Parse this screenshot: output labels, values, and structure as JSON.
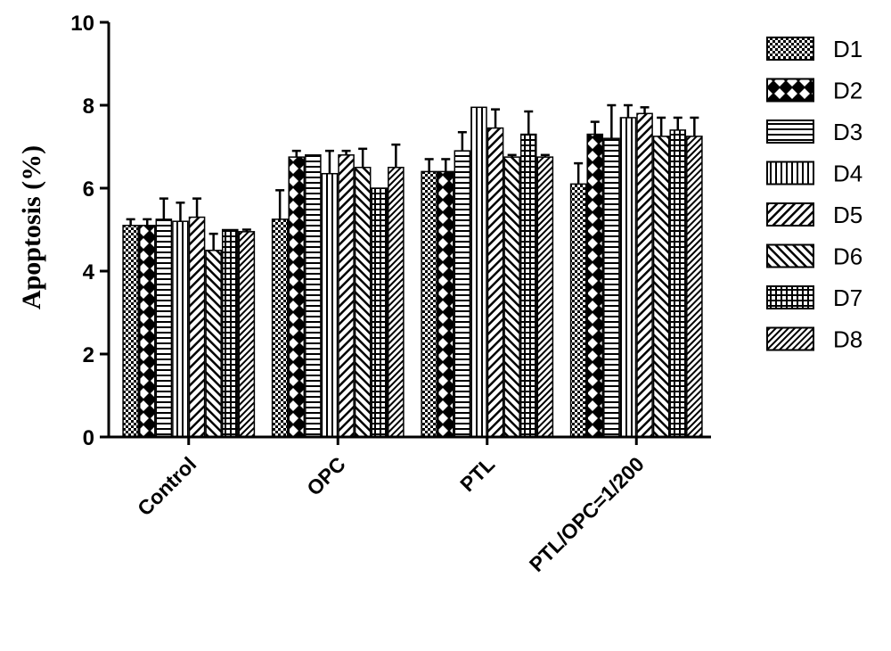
{
  "chart_data": {
    "type": "bar",
    "title": "",
    "xlabel": "",
    "ylabel": "Apoptosis (%)",
    "ylim": [
      0,
      10
    ],
    "yticks": [
      "0",
      "2",
      "4",
      "6",
      "8",
      "10"
    ],
    "grid": false,
    "legend_position": "right",
    "error_bars": true,
    "categories": [
      "Control",
      "OPC",
      "PTL",
      "PTL/OPC=1/200"
    ],
    "series": [
      {
        "name": "D1",
        "pattern": "checker",
        "values": [
          5.1,
          5.25,
          6.4,
          6.1
        ],
        "errors": [
          0.15,
          0.7,
          0.3,
          0.5
        ]
      },
      {
        "name": "D2",
        "pattern": "diamond",
        "values": [
          5.1,
          6.75,
          6.4,
          7.3
        ],
        "errors": [
          0.15,
          0.15,
          0.3,
          0.3
        ]
      },
      {
        "name": "D3",
        "pattern": "horizontal",
        "values": [
          5.25,
          6.8,
          6.9,
          7.2
        ],
        "errors": [
          0.5,
          0.0,
          0.45,
          0.8
        ]
      },
      {
        "name": "D4",
        "pattern": "vertical",
        "values": [
          5.2,
          6.35,
          7.95,
          7.7
        ],
        "errors": [
          0.45,
          0.55,
          0.0,
          0.3
        ]
      },
      {
        "name": "D5",
        "pattern": "diag-up",
        "values": [
          5.3,
          6.8,
          7.45,
          7.8
        ],
        "errors": [
          0.45,
          0.1,
          0.45,
          0.15
        ]
      },
      {
        "name": "D6",
        "pattern": "diag-down",
        "values": [
          4.5,
          6.5,
          6.75,
          7.25
        ],
        "errors": [
          0.4,
          0.45,
          0.05,
          0.45
        ]
      },
      {
        "name": "D7",
        "pattern": "grid",
        "values": [
          5.0,
          6.0,
          7.3,
          7.4
        ],
        "errors": [
          0.0,
          0.0,
          0.55,
          0.3
        ]
      },
      {
        "name": "D8",
        "pattern": "dense-diag",
        "values": [
          4.95,
          6.5,
          6.75,
          7.25
        ],
        "errors": [
          0.05,
          0.55,
          0.05,
          0.45
        ]
      }
    ]
  }
}
